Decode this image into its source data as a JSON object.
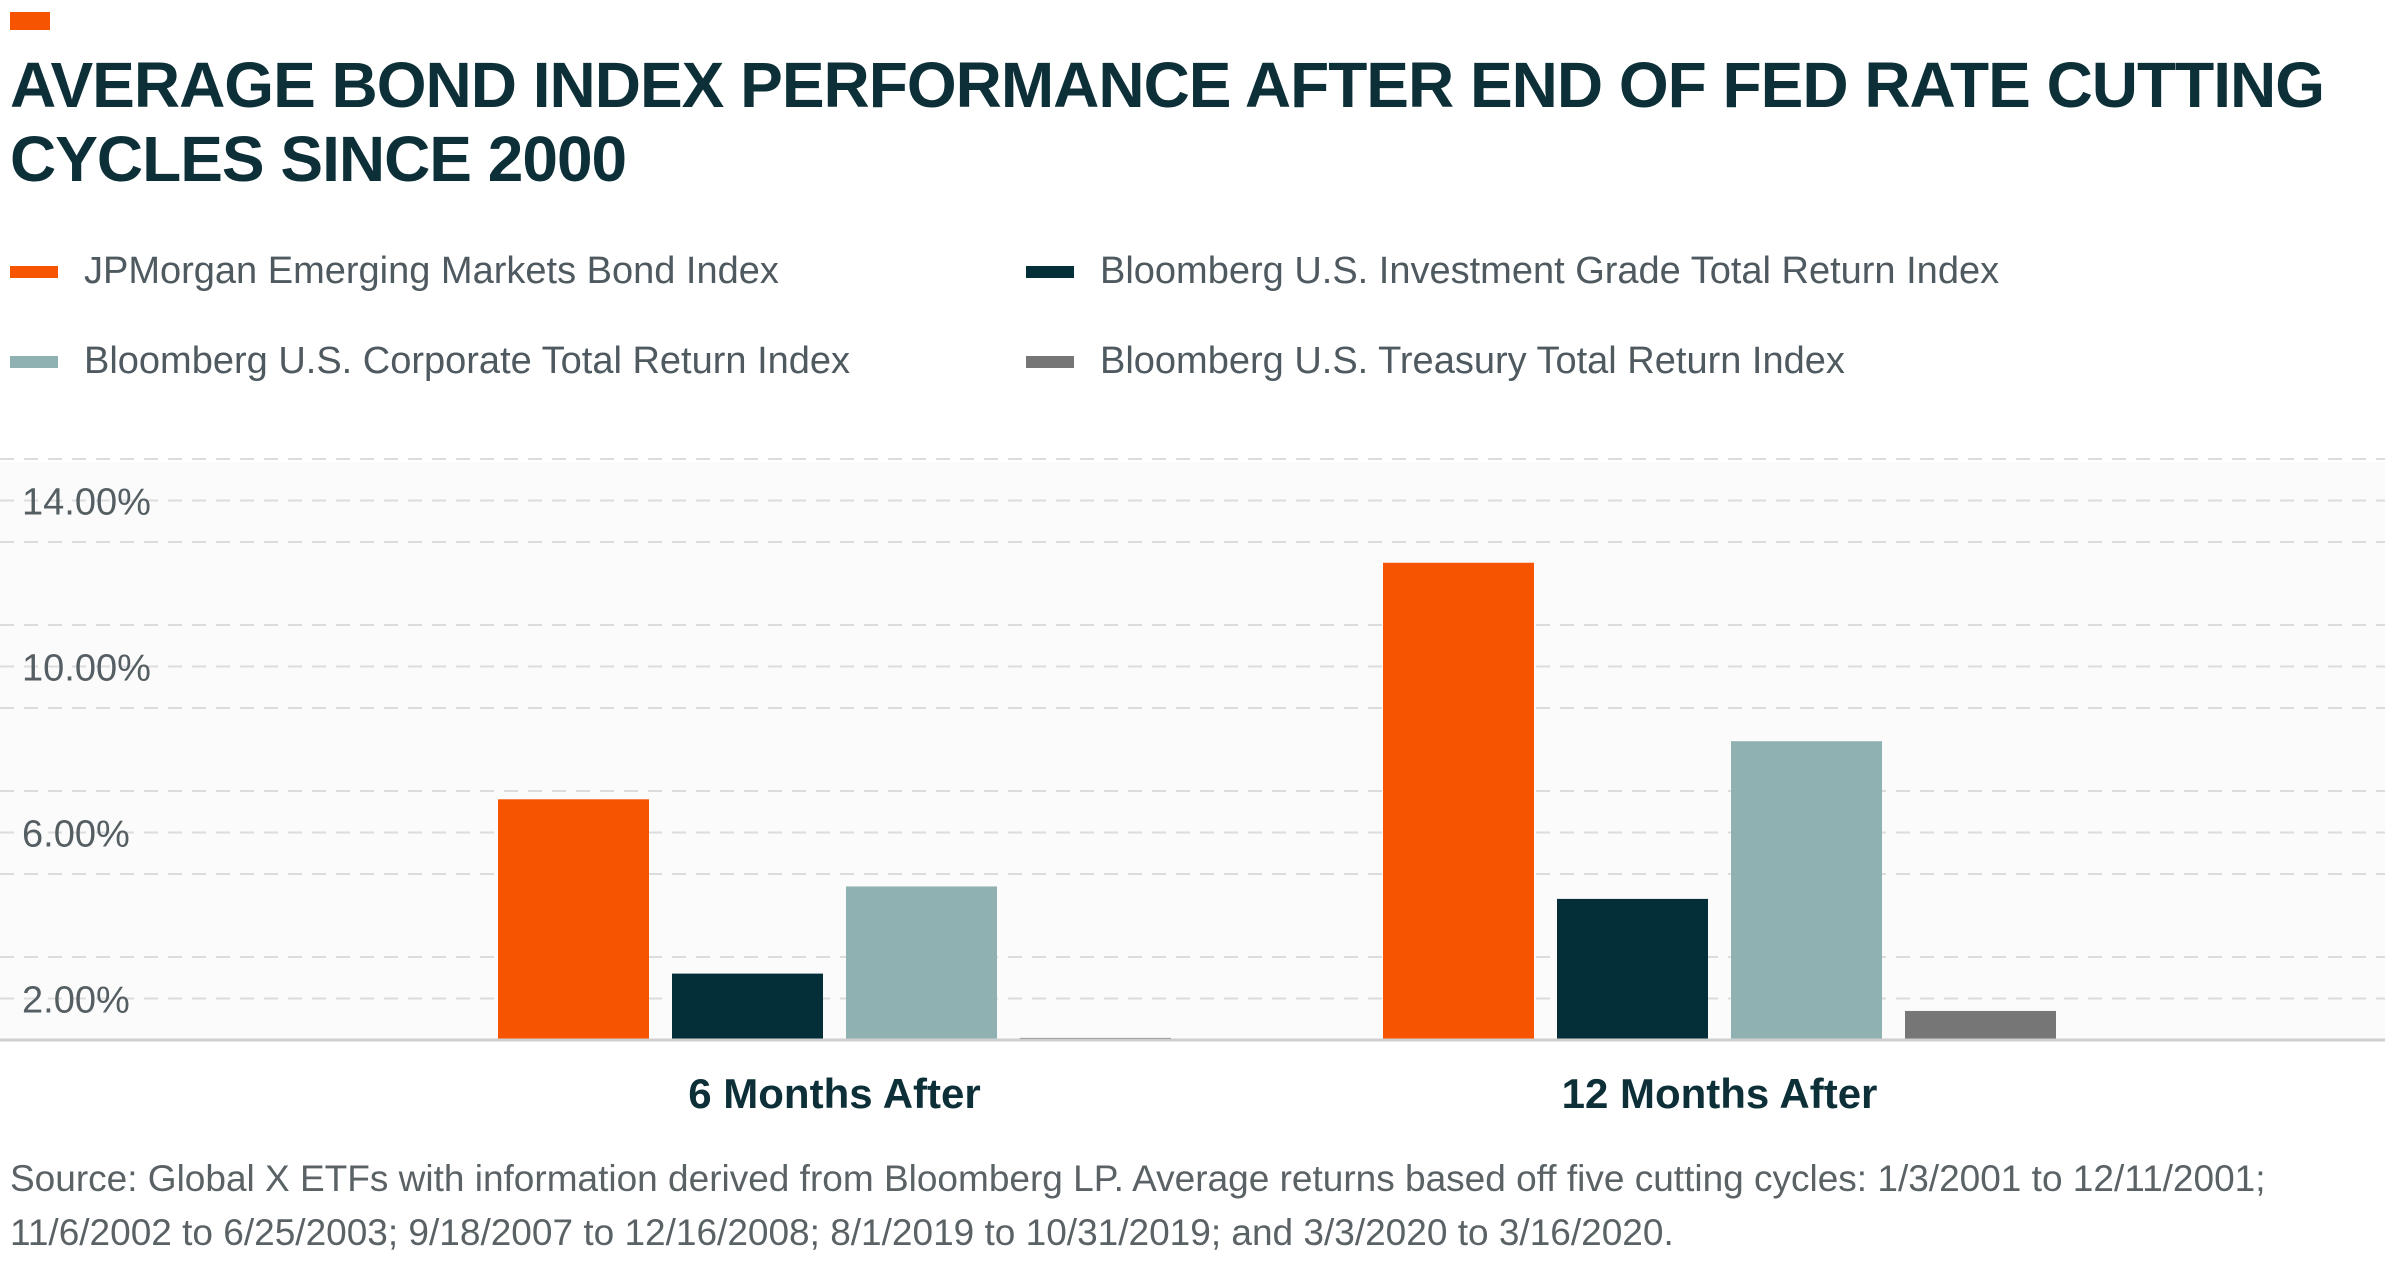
{
  "colors": {
    "accent": "#f75402",
    "title": "#0c2f38",
    "grid": "#dcdcdc",
    "axis": "#cfcfcf"
  },
  "chart_data": {
    "type": "bar",
    "title": "AVERAGE BOND INDEX PERFORMANCE AFTER END OF FED RATE CUTTING CYCLES SINCE 2000",
    "xlabel": "",
    "ylabel": "",
    "categories": [
      "6 Months After",
      "12 Months After"
    ],
    "series": [
      {
        "name": "JPMorgan Emerging Markets Bond Index",
        "color": "#f75402",
        "values": [
          6.8,
          12.5
        ]
      },
      {
        "name": "Bloomberg U.S. Investment Grade Total Return Index",
        "color": "#052f38",
        "values": [
          2.6,
          4.4
        ]
      },
      {
        "name": "Bloomberg U.S. Corporate Total Return Index",
        "color": "#8fb1b1",
        "values": [
          4.7,
          8.2
        ]
      },
      {
        "name": "Bloomberg U.S. Treasury Total Return Index",
        "color": "#767676",
        "values": [
          1.05,
          1.7
        ]
      }
    ],
    "y_ticks": [
      2,
      6,
      10,
      14
    ],
    "y_tick_labels": [
      "2.00%",
      "6.00%",
      "10.00%",
      "14.00%"
    ],
    "ylim": [
      1,
      15
    ],
    "grid": true,
    "grid_style": "dashed",
    "legend_position": "top"
  },
  "source_text": "Source: Global X ETFs with information derived from Bloomberg LP. Average returns based off five cutting cycles: 1/3/2001 to 12/11/2001; 11/6/2002 to 6/25/2003; 9/18/2007 to 12/16/2008; 8/1/2019 to 10/31/2019; and 3/3/2020 to 3/16/2020."
}
